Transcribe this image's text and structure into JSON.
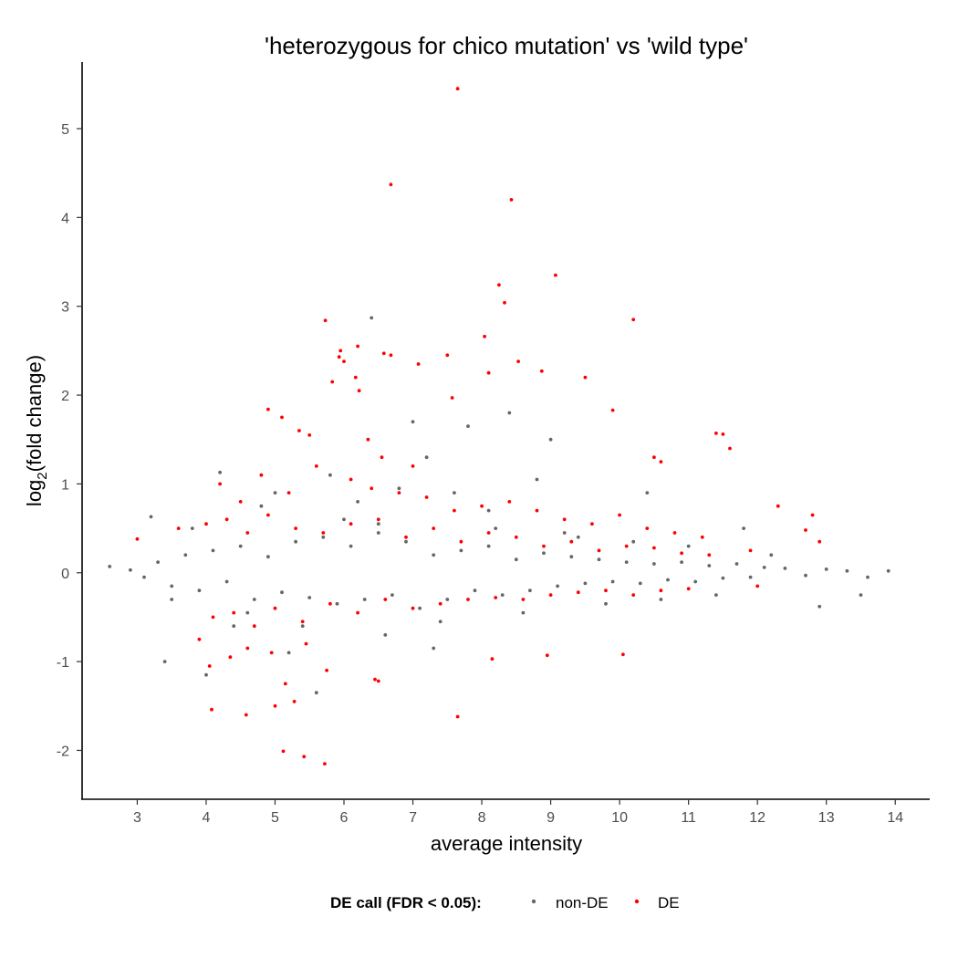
{
  "chart_data": {
    "type": "scatter",
    "title": "'heterozygous for chico mutation' vs 'wild type'",
    "xlabel": "average intensity",
    "ylabel_base": "log",
    "ylabel_sub": "2",
    "ylabel_rest": "(fold change)",
    "xlim": [
      2.2,
      14.5
    ],
    "ylim": [
      -2.55,
      5.75
    ],
    "x_ticks": [
      3,
      4,
      5,
      6,
      7,
      8,
      9,
      10,
      11,
      12,
      13,
      14
    ],
    "x_tick_labels": [
      "3",
      "4",
      "5",
      "6",
      "7",
      "8",
      "9",
      "10",
      "11",
      "12",
      "13",
      "14"
    ],
    "y_ticks": [
      -2,
      -1,
      0,
      1,
      2,
      3,
      4,
      5
    ],
    "y_tick_labels": [
      "-2",
      "-1",
      "0",
      "1",
      "2",
      "3",
      "4",
      "5"
    ],
    "grid": false,
    "legend": {
      "placement": "bottom",
      "title": "DE call (FDR < 0.05):",
      "entries": [
        {
          "label": "non-DE",
          "color": "#666666"
        },
        {
          "label": "DE",
          "color": "#ff0000"
        }
      ]
    },
    "series": [
      {
        "name": "non-DE",
        "color": "#666666",
        "x": [
          2.6,
          2.9,
          3.1,
          3.3,
          3.5,
          3.7,
          3.9,
          4.1,
          4.3,
          4.5,
          4.7,
          4.9,
          5.1,
          5.3,
          5.5,
          5.7,
          5.9,
          6.1,
          6.3,
          6.5,
          6.7,
          6.9,
          7.1,
          7.3,
          7.5,
          7.7,
          7.9,
          8.1,
          8.3,
          8.5,
          8.7,
          8.9,
          9.1,
          9.3,
          9.5,
          9.7,
          9.9,
          10.1,
          10.3,
          10.5,
          10.7,
          10.9,
          11.1,
          11.3,
          11.5,
          11.7,
          11.9,
          12.1,
          12.4,
          12.7,
          13.0,
          13.3,
          13.6,
          13.9,
          3.2,
          3.5,
          3.8,
          4.2,
          4.6,
          5.0,
          5.4,
          5.8,
          6.2,
          6.6,
          7.0,
          7.4,
          7.8,
          8.2,
          8.6,
          9.0,
          9.4,
          9.8,
          10.2,
          10.6,
          11.0,
          11.4,
          11.8,
          12.2,
          6.4,
          6.8,
          7.2,
          7.6,
          8.4,
          8.8,
          3.4,
          4.4,
          5.2,
          6.0,
          4.0,
          4.8,
          5.6,
          6.5,
          7.3,
          8.1,
          9.2,
          10.4,
          12.9,
          13.5
        ],
        "y": [
          0.07,
          0.03,
          -0.05,
          0.12,
          -0.15,
          0.2,
          -0.2,
          0.25,
          -0.1,
          0.3,
          -0.3,
          0.18,
          -0.22,
          0.35,
          -0.28,
          0.4,
          -0.35,
          0.3,
          -0.3,
          0.45,
          -0.25,
          0.35,
          -0.4,
          0.2,
          -0.3,
          0.25,
          -0.2,
          0.3,
          -0.25,
          0.15,
          -0.2,
          0.22,
          -0.15,
          0.18,
          -0.12,
          0.15,
          -0.1,
          0.12,
          -0.12,
          0.1,
          -0.08,
          0.12,
          -0.1,
          0.08,
          -0.06,
          0.1,
          -0.05,
          0.06,
          0.05,
          -0.03,
          0.04,
          0.02,
          -0.05,
          0.02,
          0.63,
          -0.3,
          0.5,
          1.13,
          -0.45,
          0.9,
          -0.6,
          1.1,
          0.8,
          -0.7,
          1.7,
          -0.55,
          1.65,
          0.5,
          -0.45,
          1.5,
          0.4,
          -0.35,
          0.35,
          -0.3,
          0.3,
          -0.25,
          0.5,
          0.2,
          2.87,
          0.95,
          1.3,
          0.9,
          1.8,
          1.05,
          -1.0,
          -0.6,
          -0.9,
          0.6,
          -1.15,
          0.75,
          -1.35,
          0.55,
          -0.85,
          0.7,
          0.45,
          0.9,
          -0.38,
          -0.25
        ]
      },
      {
        "name": "DE",
        "color": "#ff0000",
        "x": [
          7.65,
          6.68,
          8.43,
          9.07,
          8.25,
          8.33,
          5.73,
          10.2,
          8.04,
          6.2,
          5.95,
          6.58,
          5.93,
          6.0,
          6.68,
          7.08,
          7.5,
          7.57,
          8.1,
          6.17,
          6.22,
          8.53,
          8.87,
          9.5,
          5.83,
          5.1,
          9.9,
          4.9,
          5.5,
          5.35,
          6.35,
          6.55,
          7.0,
          4.2,
          4.5,
          4.8,
          5.2,
          5.6,
          6.1,
          6.4,
          6.8,
          7.2,
          7.6,
          8.0,
          8.4,
          8.8,
          9.2,
          9.6,
          10.0,
          10.4,
          10.8,
          11.2,
          11.4,
          11.5,
          11.6,
          10.5,
          10.6,
          12.3,
          12.7,
          12.8,
          12.9,
          3.0,
          3.6,
          4.0,
          4.3,
          4.6,
          4.9,
          5.3,
          5.7,
          6.1,
          6.5,
          6.9,
          7.3,
          7.7,
          8.1,
          8.5,
          8.9,
          9.3,
          9.7,
          10.1,
          10.5,
          10.9,
          11.3,
          11.9,
          4.1,
          4.4,
          4.7,
          5.0,
          5.4,
          5.8,
          6.2,
          6.6,
          7.0,
          7.4,
          7.8,
          8.2,
          8.6,
          9.0,
          9.4,
          9.8,
          10.2,
          10.6,
          11.0,
          12.0,
          3.9,
          4.05,
          4.35,
          4.6,
          4.95,
          5.15,
          5.45,
          5.75,
          6.45,
          7.65,
          8.15,
          8.95,
          10.05,
          5.12,
          5.42,
          5.72,
          5.28,
          4.08,
          4.58,
          5.0,
          6.5
        ],
        "y": [
          5.45,
          4.37,
          4.2,
          3.35,
          3.24,
          3.04,
          2.84,
          2.85,
          2.66,
          2.55,
          2.5,
          2.47,
          2.43,
          2.38,
          2.45,
          2.35,
          2.45,
          1.97,
          2.25,
          2.2,
          2.05,
          2.38,
          2.27,
          2.2,
          2.15,
          1.75,
          1.83,
          1.84,
          1.55,
          1.6,
          1.5,
          1.3,
          1.2,
          1.0,
          0.8,
          1.1,
          0.9,
          1.2,
          1.05,
          0.95,
          0.9,
          0.85,
          0.7,
          0.75,
          0.8,
          0.7,
          0.6,
          0.55,
          0.65,
          0.5,
          0.45,
          0.4,
          1.57,
          1.56,
          1.4,
          1.3,
          1.25,
          0.75,
          0.48,
          0.65,
          0.35,
          0.38,
          0.5,
          0.55,
          0.6,
          0.45,
          0.65,
          0.5,
          0.45,
          0.55,
          0.6,
          0.4,
          0.5,
          0.35,
          0.45,
          0.4,
          0.3,
          0.35,
          0.25,
          0.3,
          0.28,
          0.22,
          0.2,
          0.25,
          -0.5,
          -0.45,
          -0.6,
          -0.4,
          -0.55,
          -0.35,
          -0.45,
          -0.3,
          -0.4,
          -0.35,
          -0.3,
          -0.28,
          -0.3,
          -0.25,
          -0.22,
          -0.2,
          -0.25,
          -0.2,
          -0.18,
          -0.15,
          -0.75,
          -1.05,
          -0.95,
          -0.85,
          -0.9,
          -1.25,
          -0.8,
          -1.1,
          -1.2,
          -1.62,
          -0.97,
          -0.93,
          -0.92,
          -2.01,
          -2.07,
          -2.15,
          -1.45,
          -1.54,
          -1.6,
          -1.5,
          -1.22
        ]
      }
    ]
  }
}
